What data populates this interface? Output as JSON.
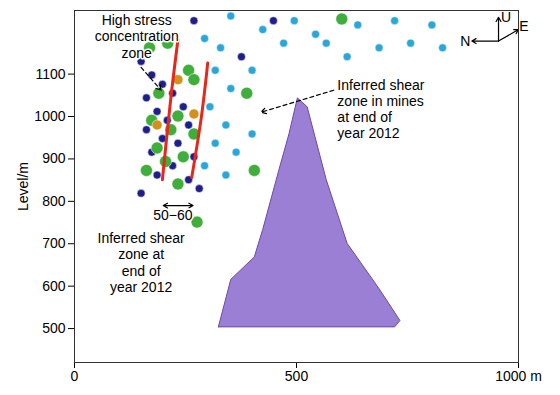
{
  "chart_data": {
    "type": "scatter",
    "ylabel": "Level/m",
    "xlim": [
      0,
      1000
    ],
    "xticks": [
      0,
      500,
      {
        "value": 1000,
        "label": "1000 m"
      }
    ],
    "ylim": [
      420,
      1250
    ],
    "yticks": [
      500,
      600,
      700,
      800,
      900,
      1000,
      1100
    ],
    "grid": false,
    "marker": "circle",
    "series": [
      {
        "color": "#1f1f8c",
        "x": [
          269,
          150,
          174,
          198,
          162,
          221,
          186,
          245,
          209,
          162,
          257,
          198,
          233,
          174,
          269,
          221,
          186,
          257,
          376,
          448,
          150,
          281
        ],
        "y": [
          1226,
          1130,
          1098,
          1076,
          1044,
          1055,
          1012,
          1023,
          991,
          969,
          980,
          948,
          937,
          916,
          905,
          884,
          862,
          851,
          1141,
          1226,
          819,
          830
        ]
      },
      {
        "color": "#3fae3a",
        "x": [
          169,
          210,
          257,
          190,
          233,
          174,
          269,
          217,
          186,
          245,
          205,
          162,
          233,
          269,
          276,
          388,
          602,
          405
        ],
        "y": [
          1162,
          1173,
          1109,
          1055,
          1001,
          991,
          959,
          969,
          926,
          905,
          894,
          873,
          841,
          1087,
          751,
          1055,
          1230,
          873
        ]
      },
      {
        "color": "#2aa6d8",
        "x": [
          352,
          424,
          495,
          543,
          638,
          721,
          805,
          829,
          757,
          686,
          614,
          329,
          293,
          317,
          352,
          305,
          341,
          317,
          364,
          293,
          341,
          400,
          471,
          567,
          400
        ],
        "y": [
          1237,
          1205,
          1226,
          1194,
          1216,
          1226,
          1216,
          1162,
          1173,
          1162,
          1141,
          1162,
          1184,
          1109,
          1066,
          1023,
          980,
          937,
          916,
          884,
          862,
          1109,
          1173,
          1173,
          959
        ]
      },
      {
        "color": "#d4901c",
        "x": [
          233,
          269,
          186
        ],
        "y": [
          1087,
          1006,
          980
        ]
      }
    ],
    "ore_body": {
      "color": "#9b7fd4",
      "x": [
        324,
        352,
        405,
        424,
        460,
        483,
        502,
        524,
        567,
        614,
        686,
        733,
        721
      ],
      "y": [
        504,
        616,
        669,
        734,
        873,
        959,
        1044,
        1023,
        851,
        701,
        594,
        519,
        504
      ]
    },
    "shear_zone_lines": [
      {
        "color": "#e8261c",
        "x": [
          233,
          217,
          198
        ],
        "y": [
          1181,
          1044,
          851
        ]
      },
      {
        "color": "#e8261c",
        "x": [
          300,
          286,
          264
        ],
        "y": [
          1126,
          1001,
          856
        ]
      }
    ],
    "shear_zone_width": {
      "label": "50−60",
      "x": [
        200,
        267
      ],
      "y": 790
    },
    "annotations": [
      {
        "text": "High stress\nconcentration\nzone"
      },
      {
        "text": "Inferred shear\nzone in mines\nat end of\nyear 2012"
      },
      {
        "text": "Inferred shear\nzone at\nend of\nyear 2012"
      }
    ],
    "compass": {
      "up": "U",
      "east": "E",
      "north": "N"
    }
  }
}
